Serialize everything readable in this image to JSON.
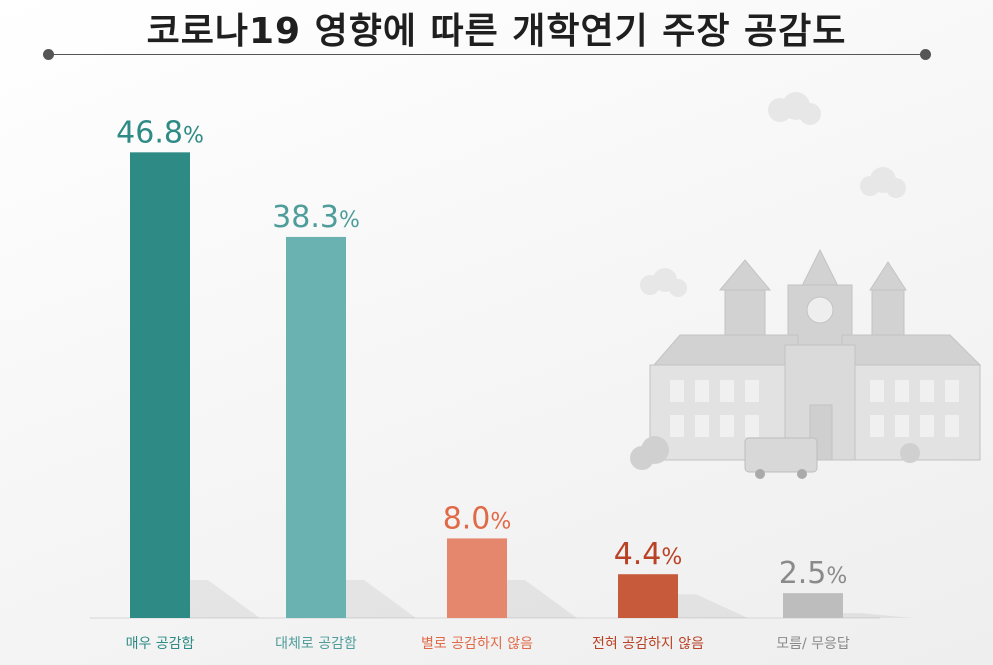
{
  "title": "코로나19 영향에 따른 개학연기 주장 공감도",
  "chart_data": {
    "type": "bar",
    "categories": [
      "매우 공감함",
      "대체로 공감함",
      "별로 공감하지 않음",
      "전혀 공감하지 않음",
      "모름/ 무응답"
    ],
    "values": [
      46.8,
      38.3,
      8.0,
      4.4,
      2.5
    ],
    "value_labels": [
      "46.8",
      "38.3",
      "8.0",
      "4.4",
      "2.5"
    ],
    "unit": "%",
    "bar_colors": [
      "#2e8a84",
      "#6ab2b1",
      "#e5876d",
      "#c85a3c",
      "#bdbdbd"
    ],
    "label_colors": [
      "#2e8a84",
      "#4e9d9a",
      "#e06a48",
      "#b94125",
      "#8a8a8a"
    ],
    "title": "코로나19 영향에 따른 개학연기 주장 공감도",
    "xlabel": "",
    "ylabel": "",
    "grid": false,
    "legend": "none"
  }
}
